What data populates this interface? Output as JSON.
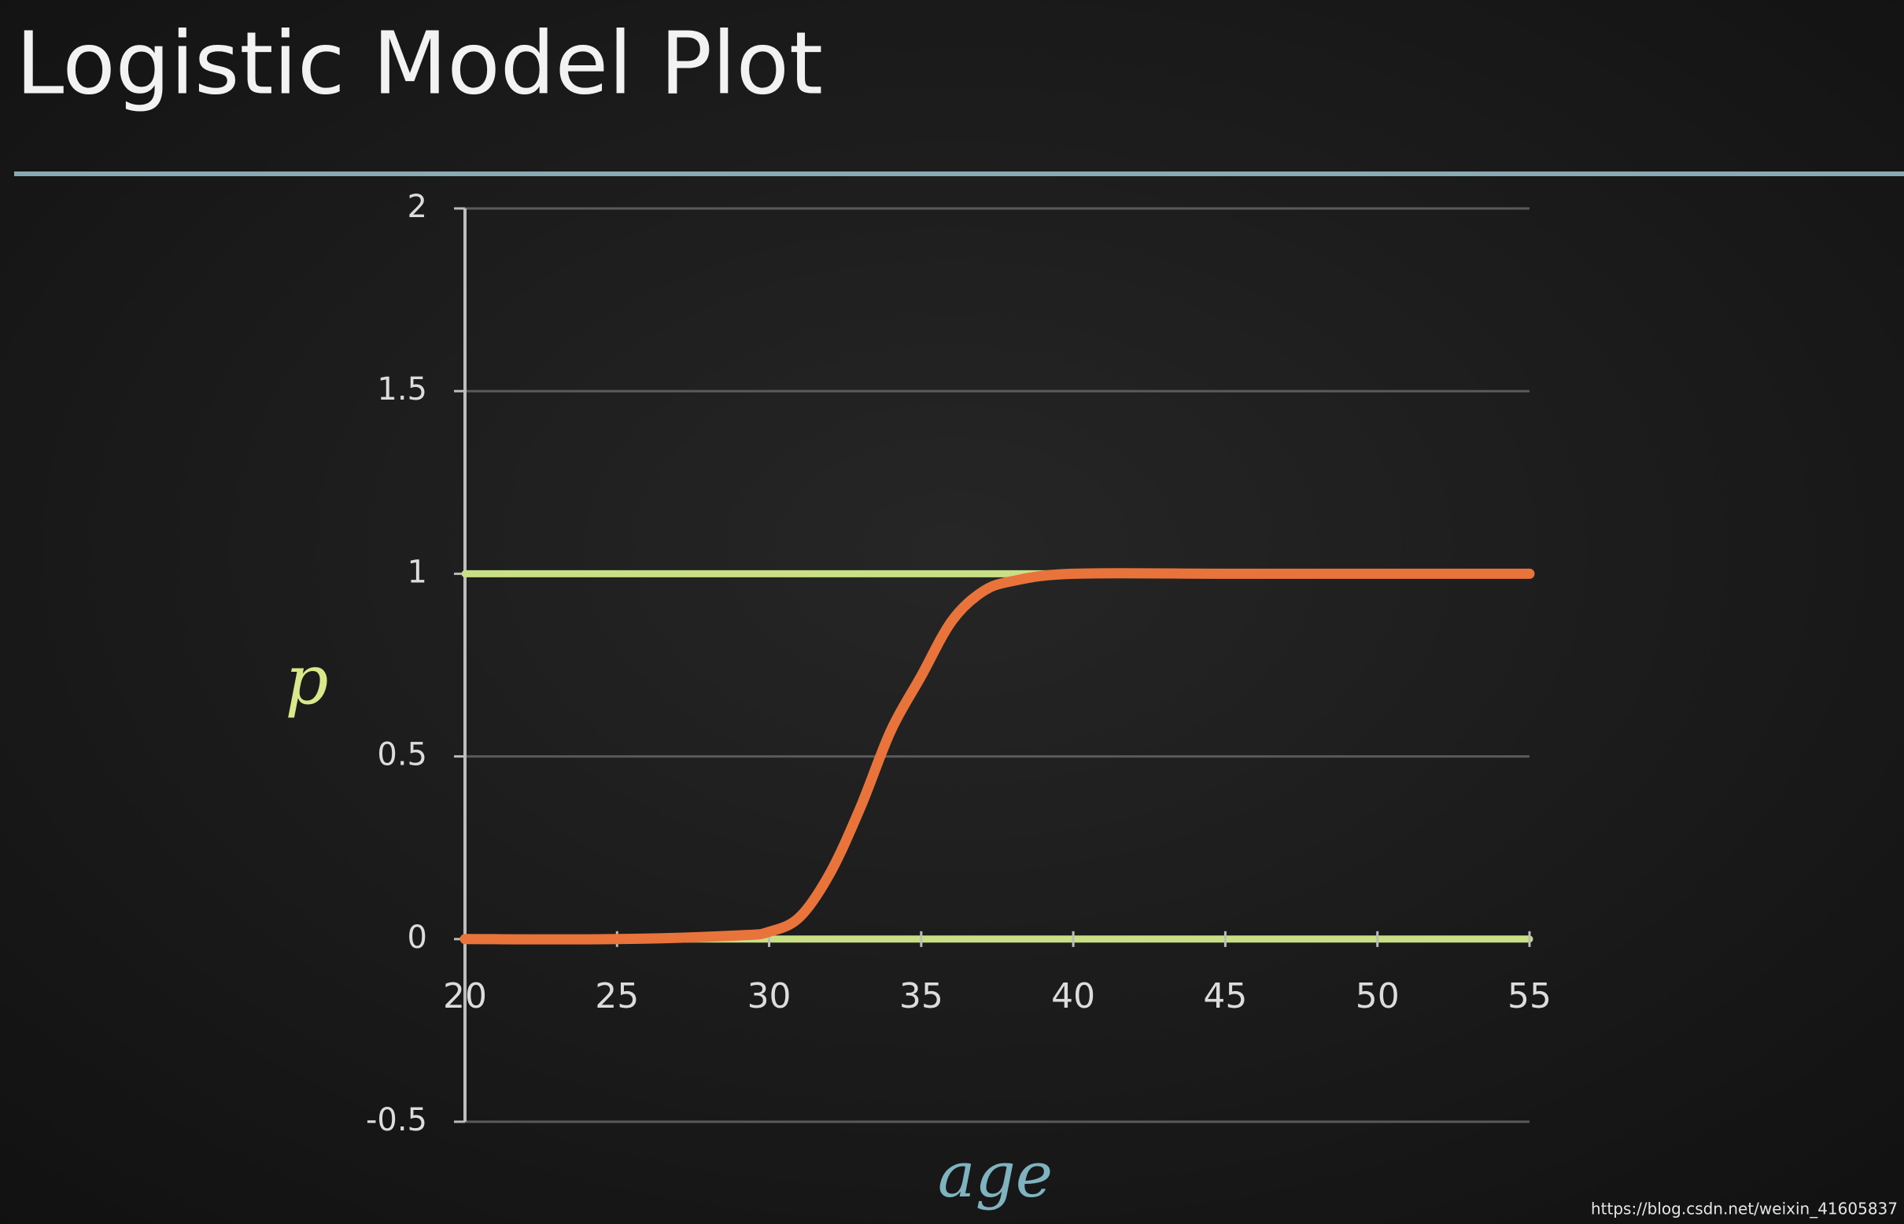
{
  "chart_data": {
    "type": "line",
    "title": "Logistic Model Plot",
    "x_label": "age",
    "y_label": "p",
    "x": [
      20,
      25,
      29,
      30,
      31,
      32,
      33,
      34,
      35,
      36,
      37,
      38,
      40,
      45,
      50,
      55
    ],
    "series": [
      {
        "color": "#e8743b",
        "values": [
          0,
          0,
          0.01,
          0.02,
          0.06,
          0.18,
          0.36,
          0.57,
          0.72,
          0.87,
          0.95,
          0.98,
          1,
          1,
          1,
          1
        ]
      }
    ],
    "reference_lines": [
      {
        "value": 0,
        "color": "#c9df86"
      },
      {
        "value": 1,
        "color": "#c9df86"
      }
    ],
    "xlim": [
      20,
      55
    ],
    "xticks": [
      20,
      25,
      30,
      35,
      40,
      45,
      50,
      55
    ],
    "ylim": [
      -0.5,
      2
    ],
    "yticks": [
      -0.5,
      0,
      0.5,
      1,
      1.5,
      2
    ],
    "grid": true,
    "watermark": "https://blog.csdn.net/weixin_41605837"
  }
}
